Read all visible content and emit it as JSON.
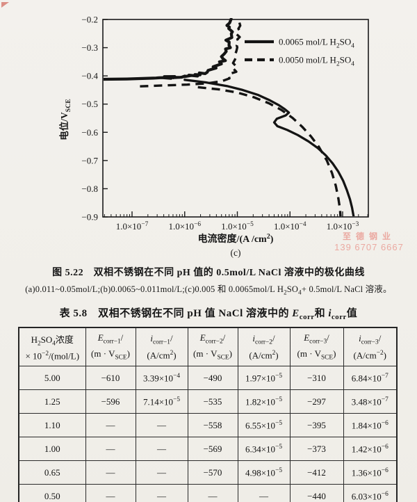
{
  "page": {
    "background": "#f1efea",
    "ink": "#161616"
  },
  "figure": {
    "caption_title": "图 5.22　双相不锈钢在不同 pH 值的 0.5mol/L NaCl 溶液中的极化曲线",
    "caption_sub": "(a)0.011~0.05mol/L;(b)0.0065~0.011mol/L;(c)0.005 和 0.0065mol/L H_{2}SO_{4}+ 0.5mol/L NaCl 溶液。",
    "panel_label": "(c)",
    "watermark": {
      "line1": "至德钢业",
      "line2": "139 6707 6667",
      "color": "#eba9a1"
    }
  },
  "chart_data": {
    "type": "line",
    "title": "",
    "xlabel": "电流密度/(A /cm^{2})",
    "xlabel_note": "(c)",
    "ylabel": "电位/V_{SCE}",
    "x_scale": "log",
    "grid": false,
    "legend_position": "upper right inside",
    "xlim_log10": [
      -7.55,
      -2.5
    ],
    "ylim": [
      -0.9,
      -0.2
    ],
    "x_ticks": [
      {
        "log10": -7,
        "label": "1.0×10^{−7}"
      },
      {
        "log10": -6,
        "label": "1.0×10^{−6}"
      },
      {
        "log10": -5,
        "label": "1.0×10^{−5}"
      },
      {
        "log10": -4,
        "label": "1.0×10^{−4}"
      },
      {
        "log10": -3,
        "label": "1.0×10^{−3}"
      }
    ],
    "y_ticks": [
      {
        "v": -0.2,
        "label": "−0.2"
      },
      {
        "v": -0.3,
        "label": "−0.3"
      },
      {
        "v": -0.4,
        "label": "−0.4"
      },
      {
        "v": -0.5,
        "label": "−0.5"
      },
      {
        "v": -0.6,
        "label": "−0.6"
      },
      {
        "v": -0.7,
        "label": "−0.7"
      },
      {
        "v": -0.8,
        "label": "−0.8"
      },
      {
        "v": -0.9,
        "label": "−0.9"
      }
    ],
    "legend": [
      {
        "name": "0.0065 mol/L H_{2}SO_{4}",
        "style": "solid"
      },
      {
        "name": "0.0050 mol/L H_{2}SO_{4}",
        "style": "dashed"
      }
    ],
    "series": [
      {
        "name": "0.0065 mol/L H2SO4 — anodic/passive branch",
        "style": "solid",
        "noisy": true,
        "amp": 1.0,
        "points_log10i_E": [
          [
            -7.55,
            -0.412
          ],
          [
            -7.1,
            -0.411
          ],
          [
            -6.6,
            -0.408
          ],
          [
            -6.1,
            -0.403
          ],
          [
            -5.8,
            -0.398
          ],
          [
            -5.6,
            -0.39
          ],
          [
            -5.45,
            -0.378
          ],
          [
            -5.33,
            -0.36
          ],
          [
            -5.25,
            -0.338
          ],
          [
            -5.2,
            -0.315
          ],
          [
            -5.17,
            -0.29
          ],
          [
            -5.15,
            -0.262
          ],
          [
            -5.14,
            -0.235
          ],
          [
            -5.13,
            -0.21
          ],
          [
            -5.13,
            -0.198
          ]
        ]
      },
      {
        "name": "0.0065 mol/L H2SO4 — cathodic branch",
        "style": "solid",
        "noisy": false,
        "amp": 0,
        "points_log10i_E": [
          [
            -6.0,
            -0.414
          ],
          [
            -5.6,
            -0.423
          ],
          [
            -5.2,
            -0.436
          ],
          [
            -4.9,
            -0.45
          ],
          [
            -4.6,
            -0.468
          ],
          [
            -4.38,
            -0.487
          ],
          [
            -4.22,
            -0.503
          ],
          [
            -4.1,
            -0.518
          ],
          [
            -4.02,
            -0.53
          ],
          [
            -4.08,
            -0.54
          ],
          [
            -4.25,
            -0.552
          ],
          [
            -4.3,
            -0.565
          ],
          [
            -4.24,
            -0.578
          ],
          [
            -4.05,
            -0.592
          ],
          [
            -3.85,
            -0.61
          ],
          [
            -3.65,
            -0.632
          ],
          [
            -3.47,
            -0.656
          ],
          [
            -3.32,
            -0.682
          ],
          [
            -3.19,
            -0.71
          ],
          [
            -3.08,
            -0.74
          ],
          [
            -2.99,
            -0.772
          ],
          [
            -2.92,
            -0.805
          ],
          [
            -2.86,
            -0.838
          ],
          [
            -2.82,
            -0.868
          ],
          [
            -2.8,
            -0.89
          ],
          [
            -2.79,
            -0.9
          ]
        ]
      },
      {
        "name": "0.0050 mol/L H2SO4 — anodic/passive branch",
        "style": "dashed",
        "noisy": true,
        "amp": 0.45,
        "points_log10i_E": [
          [
            -6.85,
            -0.437
          ],
          [
            -6.4,
            -0.434
          ],
          [
            -5.95,
            -0.431
          ],
          [
            -5.55,
            -0.426
          ],
          [
            -5.3,
            -0.419
          ],
          [
            -5.15,
            -0.409
          ],
          [
            -5.08,
            -0.394
          ],
          [
            -5.04,
            -0.372
          ],
          [
            -5.01,
            -0.345
          ],
          [
            -4.99,
            -0.312
          ],
          [
            -4.975,
            -0.278
          ],
          [
            -4.965,
            -0.243
          ],
          [
            -4.96,
            -0.21
          ],
          [
            -4.96,
            -0.198
          ]
        ]
      },
      {
        "name": "0.0050 mol/L H2SO4 — cathodic branch",
        "style": "dashed",
        "noisy": false,
        "amp": 0,
        "points_log10i_E": [
          [
            -5.75,
            -0.44
          ],
          [
            -5.35,
            -0.448
          ],
          [
            -5.0,
            -0.459
          ],
          [
            -4.68,
            -0.476
          ],
          [
            -4.4,
            -0.497
          ],
          [
            -4.16,
            -0.521
          ],
          [
            -3.95,
            -0.549
          ],
          [
            -3.77,
            -0.58
          ],
          [
            -3.6,
            -0.615
          ],
          [
            -3.45,
            -0.652
          ],
          [
            -3.3,
            -0.7
          ],
          [
            -3.2,
            -0.745
          ],
          [
            -3.13,
            -0.79
          ],
          [
            -3.08,
            -0.835
          ],
          [
            -3.05,
            -0.872
          ],
          [
            -3.04,
            -0.9
          ]
        ]
      }
    ]
  },
  "table": {
    "title": "表 5.8　双相不锈钢在不同 pH 值 NaCl 溶液中的 *E*_{corr}和 *i*_{corr}值",
    "headers": [
      {
        "line1": "H_{2}SO_{4}浓度",
        "line2": "× 10^{−2}/(mol/L)"
      },
      {
        "line1": "*E*_{corr−1}/",
        "line2": "(m · V_{SCE})"
      },
      {
        "line1": "*i*_{corr−1}/",
        "line2": "(A/cm^{2})"
      },
      {
        "line1": "*E*_{corr−2}/",
        "line2": "(m · V_{SCE})"
      },
      {
        "line1": "*i*_{corr−2}/",
        "line2": "(A/cm^{2})"
      },
      {
        "line1": "*E*_{corr−3}/",
        "line2": "(m · V_{SCE})"
      },
      {
        "line1": "*i*_{corr−3}/",
        "line2": "(A/cm^{−2})"
      }
    ],
    "rows": [
      [
        "5.00",
        "−610",
        "3.39×10^{−4}",
        "−490",
        "1.97×10^{−5}",
        "−310",
        "6.84×10^{−7}"
      ],
      [
        "1.25",
        "−596",
        "7.14×10^{−5}",
        "−535",
        "1.82×10^{−5}",
        "−297",
        "3.48×10^{−7}"
      ],
      [
        "1.10",
        "—",
        "—",
        "−558",
        "6.55×10^{−5}",
        "−395",
        "1.84×10^{−6}"
      ],
      [
        "1.00",
        "—",
        "—",
        "−569",
        "6.34×10^{−5}",
        "−373",
        "1.42×10^{−6}"
      ],
      [
        "0.65",
        "—",
        "—",
        "−570",
        "4.98×10^{−5}",
        "−412",
        "1.36×10^{−6}"
      ],
      [
        "0.50",
        "—",
        "—",
        "—",
        "—",
        "−440",
        "6.03×10^{−6}"
      ]
    ]
  }
}
